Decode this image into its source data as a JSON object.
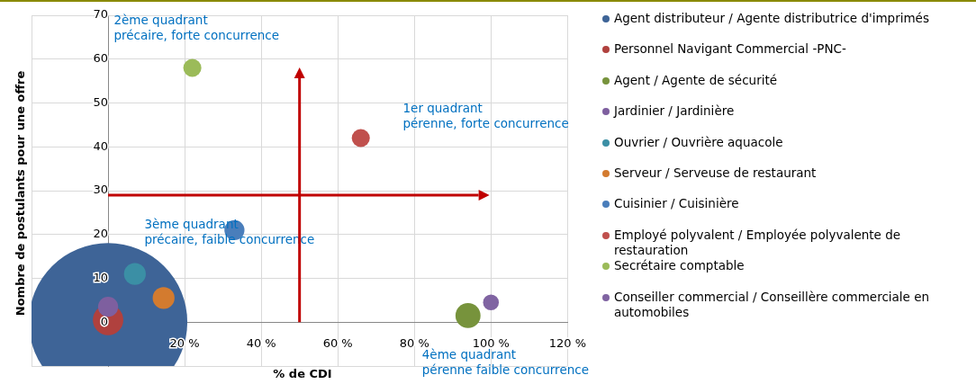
{
  "chart_data": {
    "type": "bubble",
    "xlabel": "% de CDI",
    "ylabel": "Nombre de postulants pour une offre",
    "xlim": [
      -20,
      120
    ],
    "xticks": [
      {
        "value": -20,
        "label": null
      },
      {
        "value": 0,
        "label": null
      },
      {
        "value": 20,
        "label": "20 %"
      },
      {
        "value": 40,
        "label": "40 %"
      },
      {
        "value": 60,
        "label": "60 %"
      },
      {
        "value": 80,
        "label": "80 %"
      },
      {
        "value": 100,
        "label": "100 %"
      },
      {
        "value": 120,
        "label": "120 %"
      }
    ],
    "ylim": [
      -10,
      70
    ],
    "yticks": [
      {
        "value": -10,
        "label": null
      },
      0,
      10,
      20,
      30,
      40,
      50,
      60,
      70
    ],
    "grid": true,
    "legend": "right",
    "series": [
      {
        "name": "Agent distributeur / Agente distributrice d'imprimés",
        "color": "#3e6497",
        "x": [
          0
        ],
        "values": [
          0
        ],
        "sizes": [
          1
        ]
      },
      {
        "name": "Personnel Navigant Commercial -PNC-",
        "color": "#b0413e",
        "x": [
          0
        ],
        "values": [
          0.5
        ],
        "sizes": [
          0.037
        ]
      },
      {
        "name": "Agent / Agente de sécurité",
        "color": "#77933c",
        "x": [
          94
        ],
        "values": [
          1.5
        ],
        "sizes": [
          0.025
        ]
      },
      {
        "name": "Jardinier / Jardinière",
        "color": "#7e5f9f",
        "x": [
          0
        ],
        "values": [
          3.5
        ],
        "sizes": [
          0.016
        ]
      },
      {
        "name": "Ouvrier / Ouvrière aquacole",
        "color": "#3b8fa5",
        "x": [
          7
        ],
        "values": [
          11
        ],
        "sizes": [
          0.019
        ]
      },
      {
        "name": "Serveur / Serveuse de restaurant",
        "color": "#d37b2f",
        "x": [
          14.5
        ],
        "values": [
          5.5
        ],
        "sizes": [
          0.019
        ]
      },
      {
        "name": "Cuisinier / Cuisinière",
        "color": "#4a7ebb",
        "x": [
          33
        ],
        "values": [
          21
        ],
        "sizes": [
          0.016
        ]
      },
      {
        "name": "Employé polyvalent / Employée polyvalente de restauration",
        "color": "#c0504d",
        "x": [
          66
        ],
        "values": [
          42
        ],
        "sizes": [
          0.013
        ]
      },
      {
        "name": "Secrétaire comptable",
        "color": "#9bbb59",
        "x": [
          22
        ],
        "values": [
          58
        ],
        "sizes": [
          0.013
        ]
      },
      {
        "name": "Conseiller commercial / Conseillère commerciale en automobiles",
        "color": "#8064a2",
        "x": [
          100
        ],
        "values": [
          4.5
        ],
        "sizes": [
          0.01
        ]
      }
    ],
    "ref_lines": [
      {
        "axis": "x",
        "value": 50,
        "color": "#c00000"
      },
      {
        "axis": "y",
        "value": 29,
        "color": "#c00000"
      }
    ],
    "annotations": [
      "2ème quadrant\nprécaire, forte concurrence",
      "1er quadrant\npérenne, forte concurrence",
      "3ème quadrant\nprécaire, faible concurrence",
      "4ème quadrant\npérenne faible concurrence"
    ]
  }
}
